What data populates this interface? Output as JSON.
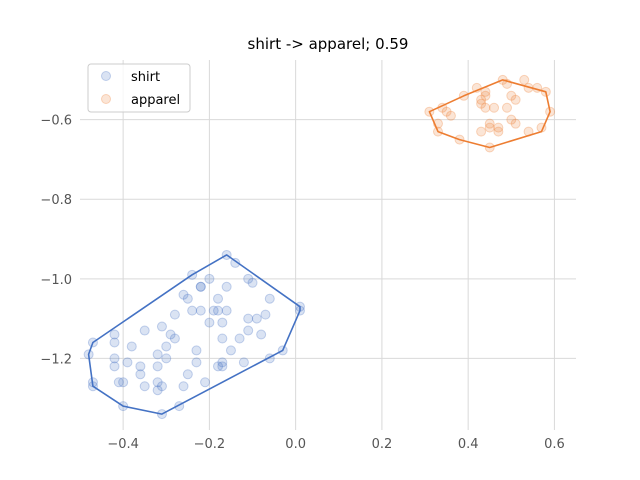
{
  "chart_data": {
    "type": "scatter",
    "title": "shirt -> apparel; 0.59",
    "xlabel": "",
    "ylabel": "",
    "xlim": [
      -0.5,
      0.65
    ],
    "ylim": [
      -1.38,
      -0.45
    ],
    "xticks": [
      -0.4,
      -0.2,
      0.0,
      0.2,
      0.4,
      0.6
    ],
    "xtick_labels": [
      "−0.4",
      "−0.2",
      "0.0",
      "0.2",
      "0.4",
      "0.6"
    ],
    "yticks": [
      -1.2,
      -1.0,
      -0.8,
      -0.6
    ],
    "ytick_labels": [
      "−1.2",
      "−1.0",
      "−0.8",
      "−0.6"
    ],
    "grid": true,
    "legend_position": "top-left",
    "series": [
      {
        "name": "shirt",
        "color": "#4472c4",
        "points": [
          [
            -0.48,
            -1.19
          ],
          [
            -0.47,
            -1.16
          ],
          [
            -0.47,
            -1.26
          ],
          [
            -0.47,
            -1.27
          ],
          [
            -0.42,
            -1.14
          ],
          [
            -0.42,
            -1.16
          ],
          [
            -0.42,
            -1.2
          ],
          [
            -0.42,
            -1.22
          ],
          [
            -0.41,
            -1.26
          ],
          [
            -0.4,
            -1.26
          ],
          [
            -0.4,
            -1.32
          ],
          [
            -0.39,
            -1.21
          ],
          [
            -0.38,
            -1.17
          ],
          [
            -0.36,
            -1.24
          ],
          [
            -0.36,
            -1.22
          ],
          [
            -0.35,
            -1.13
          ],
          [
            -0.35,
            -1.27
          ],
          [
            -0.32,
            -1.19
          ],
          [
            -0.32,
            -1.22
          ],
          [
            -0.32,
            -1.26
          ],
          [
            -0.32,
            -1.28
          ],
          [
            -0.31,
            -1.12
          ],
          [
            -0.31,
            -1.27
          ],
          [
            -0.31,
            -1.34
          ],
          [
            -0.3,
            -1.17
          ],
          [
            -0.3,
            -1.2
          ],
          [
            -0.29,
            -1.14
          ],
          [
            -0.28,
            -1.09
          ],
          [
            -0.28,
            -1.15
          ],
          [
            -0.27,
            -1.32
          ],
          [
            -0.26,
            -1.04
          ],
          [
            -0.26,
            -1.27
          ],
          [
            -0.25,
            -1.24
          ],
          [
            -0.25,
            -1.05
          ],
          [
            -0.24,
            -0.99
          ],
          [
            -0.24,
            -1.08
          ],
          [
            -0.23,
            -1.18
          ],
          [
            -0.23,
            -1.21
          ],
          [
            -0.22,
            -1.02
          ],
          [
            -0.22,
            -1.02
          ],
          [
            -0.22,
            -1.08
          ],
          [
            -0.21,
            -1.26
          ],
          [
            -0.2,
            -1.0
          ],
          [
            -0.2,
            -1.11
          ],
          [
            -0.19,
            -1.08
          ],
          [
            -0.18,
            -1.05
          ],
          [
            -0.18,
            -1.22
          ],
          [
            -0.18,
            -1.08
          ],
          [
            -0.17,
            -1.11
          ],
          [
            -0.17,
            -1.15
          ],
          [
            -0.17,
            -1.22
          ],
          [
            -0.17,
            -1.21
          ],
          [
            -0.16,
            -0.94
          ],
          [
            -0.16,
            -1.08
          ],
          [
            -0.16,
            -1.02
          ],
          [
            -0.15,
            -1.18
          ],
          [
            -0.14,
            -0.96
          ],
          [
            -0.13,
            -1.15
          ],
          [
            -0.12,
            -1.21
          ],
          [
            -0.11,
            -1.0
          ],
          [
            -0.11,
            -1.1
          ],
          [
            -0.11,
            -1.13
          ],
          [
            -0.1,
            -1.01
          ],
          [
            -0.09,
            -1.1
          ],
          [
            -0.08,
            -1.14
          ],
          [
            -0.07,
            -1.09
          ],
          [
            -0.06,
            -1.05
          ],
          [
            -0.06,
            -1.2
          ],
          [
            -0.03,
            -1.18
          ],
          [
            0.01,
            -1.07
          ],
          [
            0.01,
            -1.08
          ]
        ],
        "hull": [
          [
            -0.16,
            -0.94
          ],
          [
            0.01,
            -1.07
          ],
          [
            0.01,
            -1.08
          ],
          [
            -0.03,
            -1.18
          ],
          [
            -0.31,
            -1.34
          ],
          [
            -0.4,
            -1.32
          ],
          [
            -0.47,
            -1.27
          ],
          [
            -0.48,
            -1.19
          ],
          [
            -0.47,
            -1.16
          ],
          [
            -0.24,
            -0.99
          ]
        ]
      },
      {
        "name": "apparel",
        "color": "#ed7d31",
        "points": [
          [
            0.31,
            -0.58
          ],
          [
            0.33,
            -0.61
          ],
          [
            0.33,
            -0.63
          ],
          [
            0.34,
            -0.57
          ],
          [
            0.35,
            -0.58
          ],
          [
            0.36,
            -0.59
          ],
          [
            0.38,
            -0.65
          ],
          [
            0.39,
            -0.54
          ],
          [
            0.42,
            -0.52
          ],
          [
            0.43,
            -0.55
          ],
          [
            0.43,
            -0.56
          ],
          [
            0.43,
            -0.63
          ],
          [
            0.44,
            -0.53
          ],
          [
            0.44,
            -0.54
          ],
          [
            0.44,
            -0.57
          ],
          [
            0.45,
            -0.61
          ],
          [
            0.45,
            -0.62
          ],
          [
            0.45,
            -0.67
          ],
          [
            0.46,
            -0.57
          ],
          [
            0.47,
            -0.63
          ],
          [
            0.47,
            -0.62
          ],
          [
            0.48,
            -0.5
          ],
          [
            0.49,
            -0.51
          ],
          [
            0.49,
            -0.57
          ],
          [
            0.5,
            -0.54
          ],
          [
            0.5,
            -0.6
          ],
          [
            0.51,
            -0.55
          ],
          [
            0.51,
            -0.61
          ],
          [
            0.53,
            -0.5
          ],
          [
            0.54,
            -0.52
          ],
          [
            0.54,
            -0.63
          ],
          [
            0.56,
            -0.52
          ],
          [
            0.57,
            -0.62
          ],
          [
            0.58,
            -0.53
          ],
          [
            0.59,
            -0.58
          ]
        ],
        "hull": [
          [
            0.31,
            -0.58
          ],
          [
            0.39,
            -0.54
          ],
          [
            0.48,
            -0.5
          ],
          [
            0.58,
            -0.53
          ],
          [
            0.59,
            -0.58
          ],
          [
            0.57,
            -0.63
          ],
          [
            0.45,
            -0.67
          ],
          [
            0.38,
            -0.65
          ],
          [
            0.33,
            -0.63
          ]
        ]
      }
    ]
  }
}
